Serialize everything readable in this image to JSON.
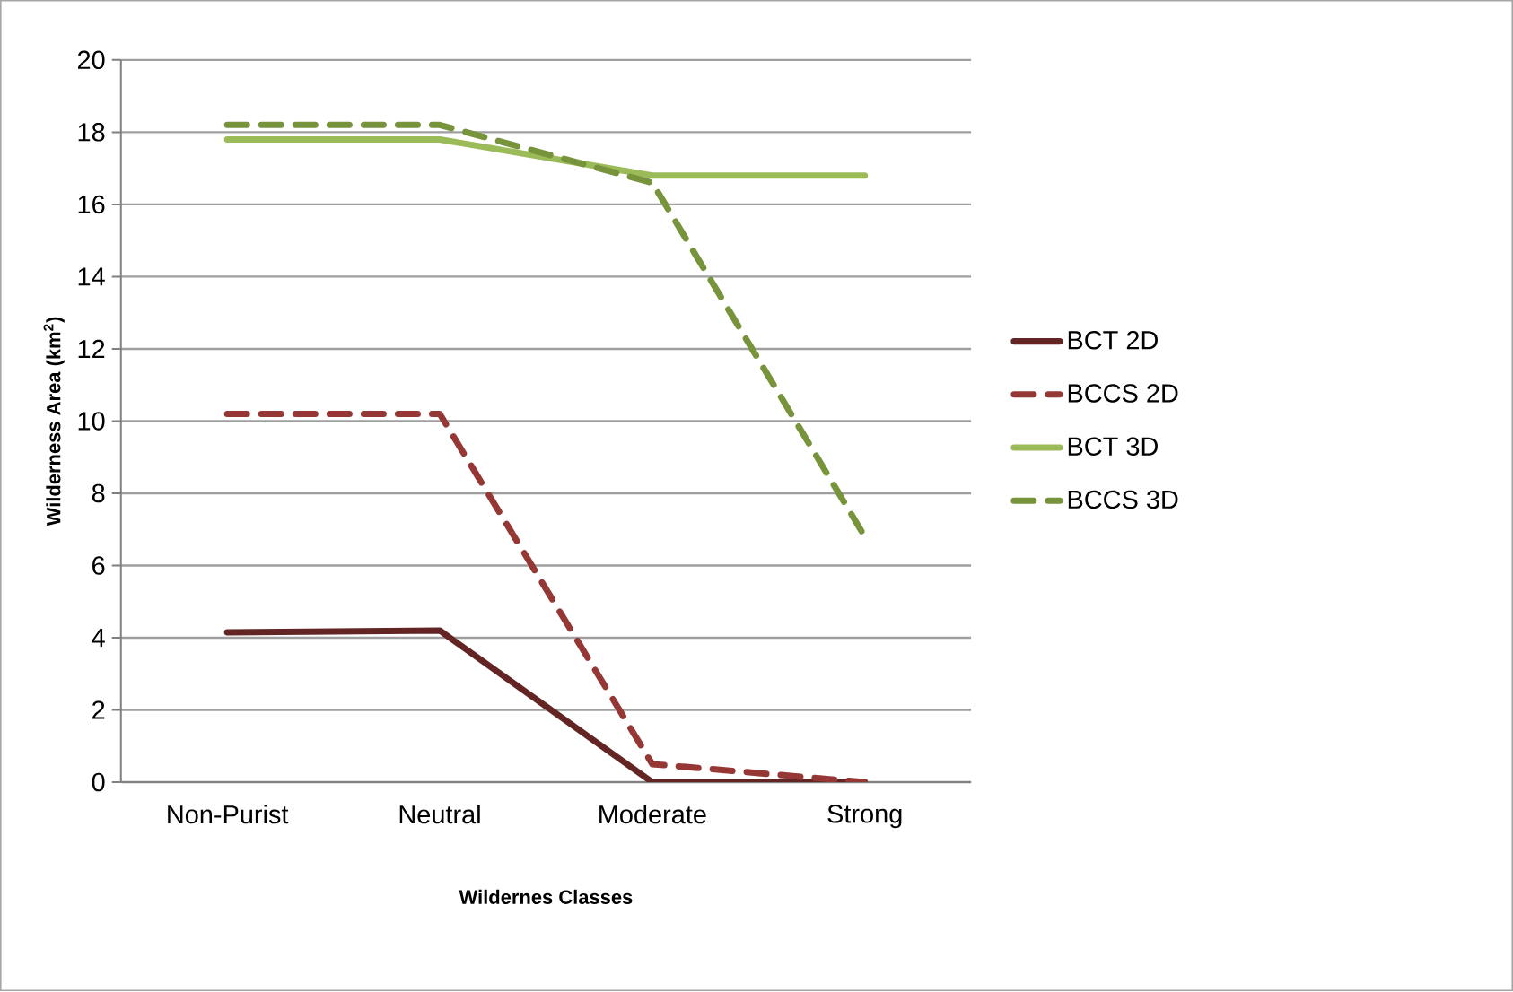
{
  "chart_data": {
    "type": "line",
    "xlabel": "Wildernes Classes",
    "ylabel": "Wilderness Area (km$^{2}$)",
    "categories": [
      "Non-Purist",
      "Neutral",
      "Moderate",
      "Strong"
    ],
    "series": [
      {
        "name": "BCT 2D",
        "color": "#632523",
        "line_style": "solid",
        "values": [
          4.15,
          4.2,
          0,
          0
        ]
      },
      {
        "name": "BCCS 2D",
        "color": "#953735",
        "line_style": "dashed",
        "values": [
          10.2,
          10.2,
          0.5,
          0
        ]
      },
      {
        "name": "BCT 3D",
        "color": "#9bbb59",
        "line_style": "solid",
        "values": [
          17.8,
          17.8,
          16.8,
          16.8
        ]
      },
      {
        "name": "BCCS 3D",
        "color": "#77933c",
        "line_style": "dashed",
        "values": [
          18.2,
          18.2,
          16.6,
          6.8
        ]
      }
    ],
    "ylim": [
      0,
      20
    ],
    "yticks": [
      0,
      2,
      4,
      6,
      8,
      10,
      12,
      14,
      16,
      18,
      20
    ],
    "grid": "y",
    "legend": "right"
  }
}
